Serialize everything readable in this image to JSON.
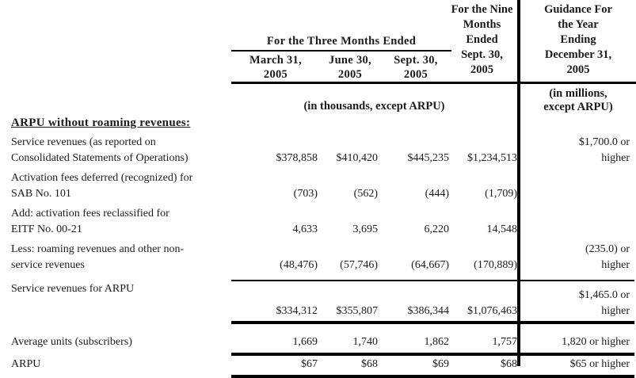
{
  "table": {
    "group_headers": {
      "three_months": "For the Three Months Ended",
      "nine_months": "For the Nine\nMonths\nEnded\nSept. 30,\n2005",
      "guidance": "Guidance For\nthe Year\nEnding\nDecember 31,\n2005"
    },
    "column_headers": [
      "March 31,\n2005",
      "June 30,\n2005",
      "Sept. 30,\n2005"
    ],
    "units_note_main": "(in thousands, except ARPU)",
    "units_note_guidance": "(in millions,\nexcept ARPU)",
    "section_title": "ARPU without roaming revenues:",
    "rows": [
      {
        "label": "Service revenues (as reported on\nConsolidated Statements of Operations)",
        "values": [
          "$378,858",
          "$410,420",
          "$445,235",
          "$1,234,513"
        ],
        "guidance": "$1,700.0 or\nhigher"
      },
      {
        "label": "Activation fees deferred (recognized) for\nSAB No. 101",
        "values": [
          "(703)",
          "(562)",
          "(444)",
          "(1,709)"
        ],
        "guidance": ""
      },
      {
        "label": "Add:  activation fees reclassified for\nEITF No. 00-21",
        "values": [
          "4,633",
          "3,695",
          "6,220",
          "14,548"
        ],
        "guidance": ""
      },
      {
        "label": "Less: roaming revenues and other non-\nservice revenues",
        "values": [
          "(48,476)",
          "(57,746)",
          "(64,667)",
          "(170,889)"
        ],
        "guidance": "(235.0) or\nhigher"
      },
      {
        "label": "Service revenues for ARPU",
        "values": [
          "$334,312",
          "$355,807",
          "$386,344",
          "$1,076,463"
        ],
        "guidance": "$1,465.0 or\nhigher"
      },
      {
        "label": "Average units (subscribers)",
        "values": [
          "1,669",
          "1,740",
          "1,862",
          "1,757"
        ],
        "guidance": "1,820 or higher"
      },
      {
        "label": "ARPU",
        "values": [
          "$67",
          "$68",
          "$69",
          "$68"
        ],
        "guidance": "$65 or higher"
      }
    ]
  }
}
